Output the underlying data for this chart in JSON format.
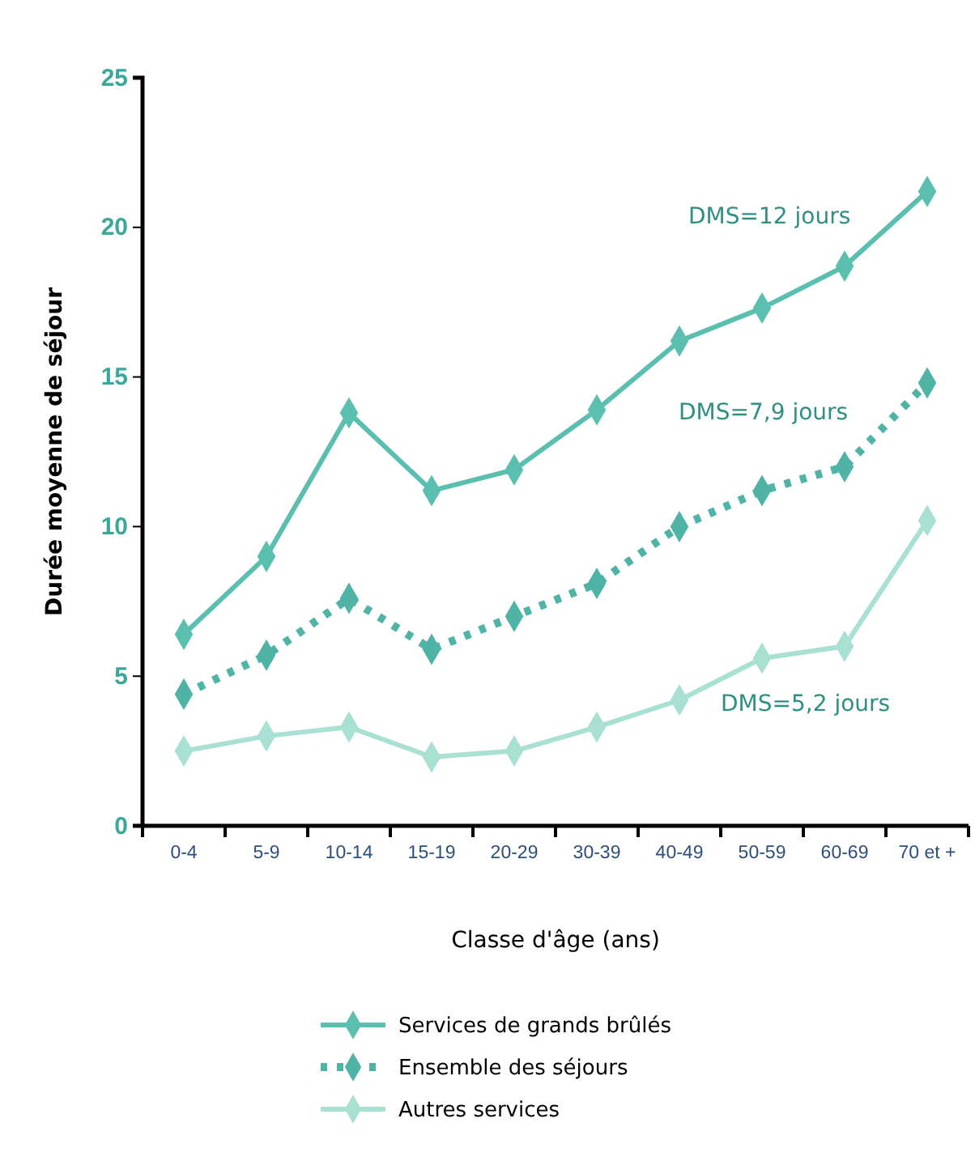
{
  "chart_data": {
    "type": "line",
    "xlabel": "Classe d'âge (ans)",
    "ylabel": "Durée moyenne de séjour",
    "categories": [
      "0-4",
      "5-9",
      "10-14",
      "15-19",
      "20-29",
      "30-39",
      "40-49",
      "50-59",
      "60-69",
      "70 et +"
    ],
    "series": [
      {
        "name": "Services de grands brûlés",
        "color": "#5bbfb0",
        "line_style": "solid",
        "values": [
          6.4,
          9.0,
          13.8,
          11.2,
          11.9,
          13.9,
          16.2,
          17.3,
          18.7,
          21.2
        ]
      },
      {
        "name": "Ensemble des séjours",
        "color": "#4fb3a5",
        "line_style": "dotted",
        "values": [
          4.4,
          5.7,
          7.6,
          5.9,
          7.0,
          8.1,
          10.0,
          11.2,
          12.0,
          14.8
        ]
      },
      {
        "name": "Autres services",
        "color": "#a8e0d4",
        "line_style": "solid",
        "values": [
          2.5,
          3.0,
          3.3,
          2.3,
          2.5,
          3.3,
          4.2,
          5.6,
          6.0,
          10.2
        ]
      }
    ],
    "ylim": [
      0,
      25
    ],
    "yticks": [
      0,
      5,
      10,
      15,
      20,
      25
    ],
    "grid": false,
    "legend": "bottom",
    "marker": "diamond",
    "annotations": [
      "DMS=12 jours",
      "DMS=7,9 jours",
      "DMS=5,2 jours"
    ]
  }
}
